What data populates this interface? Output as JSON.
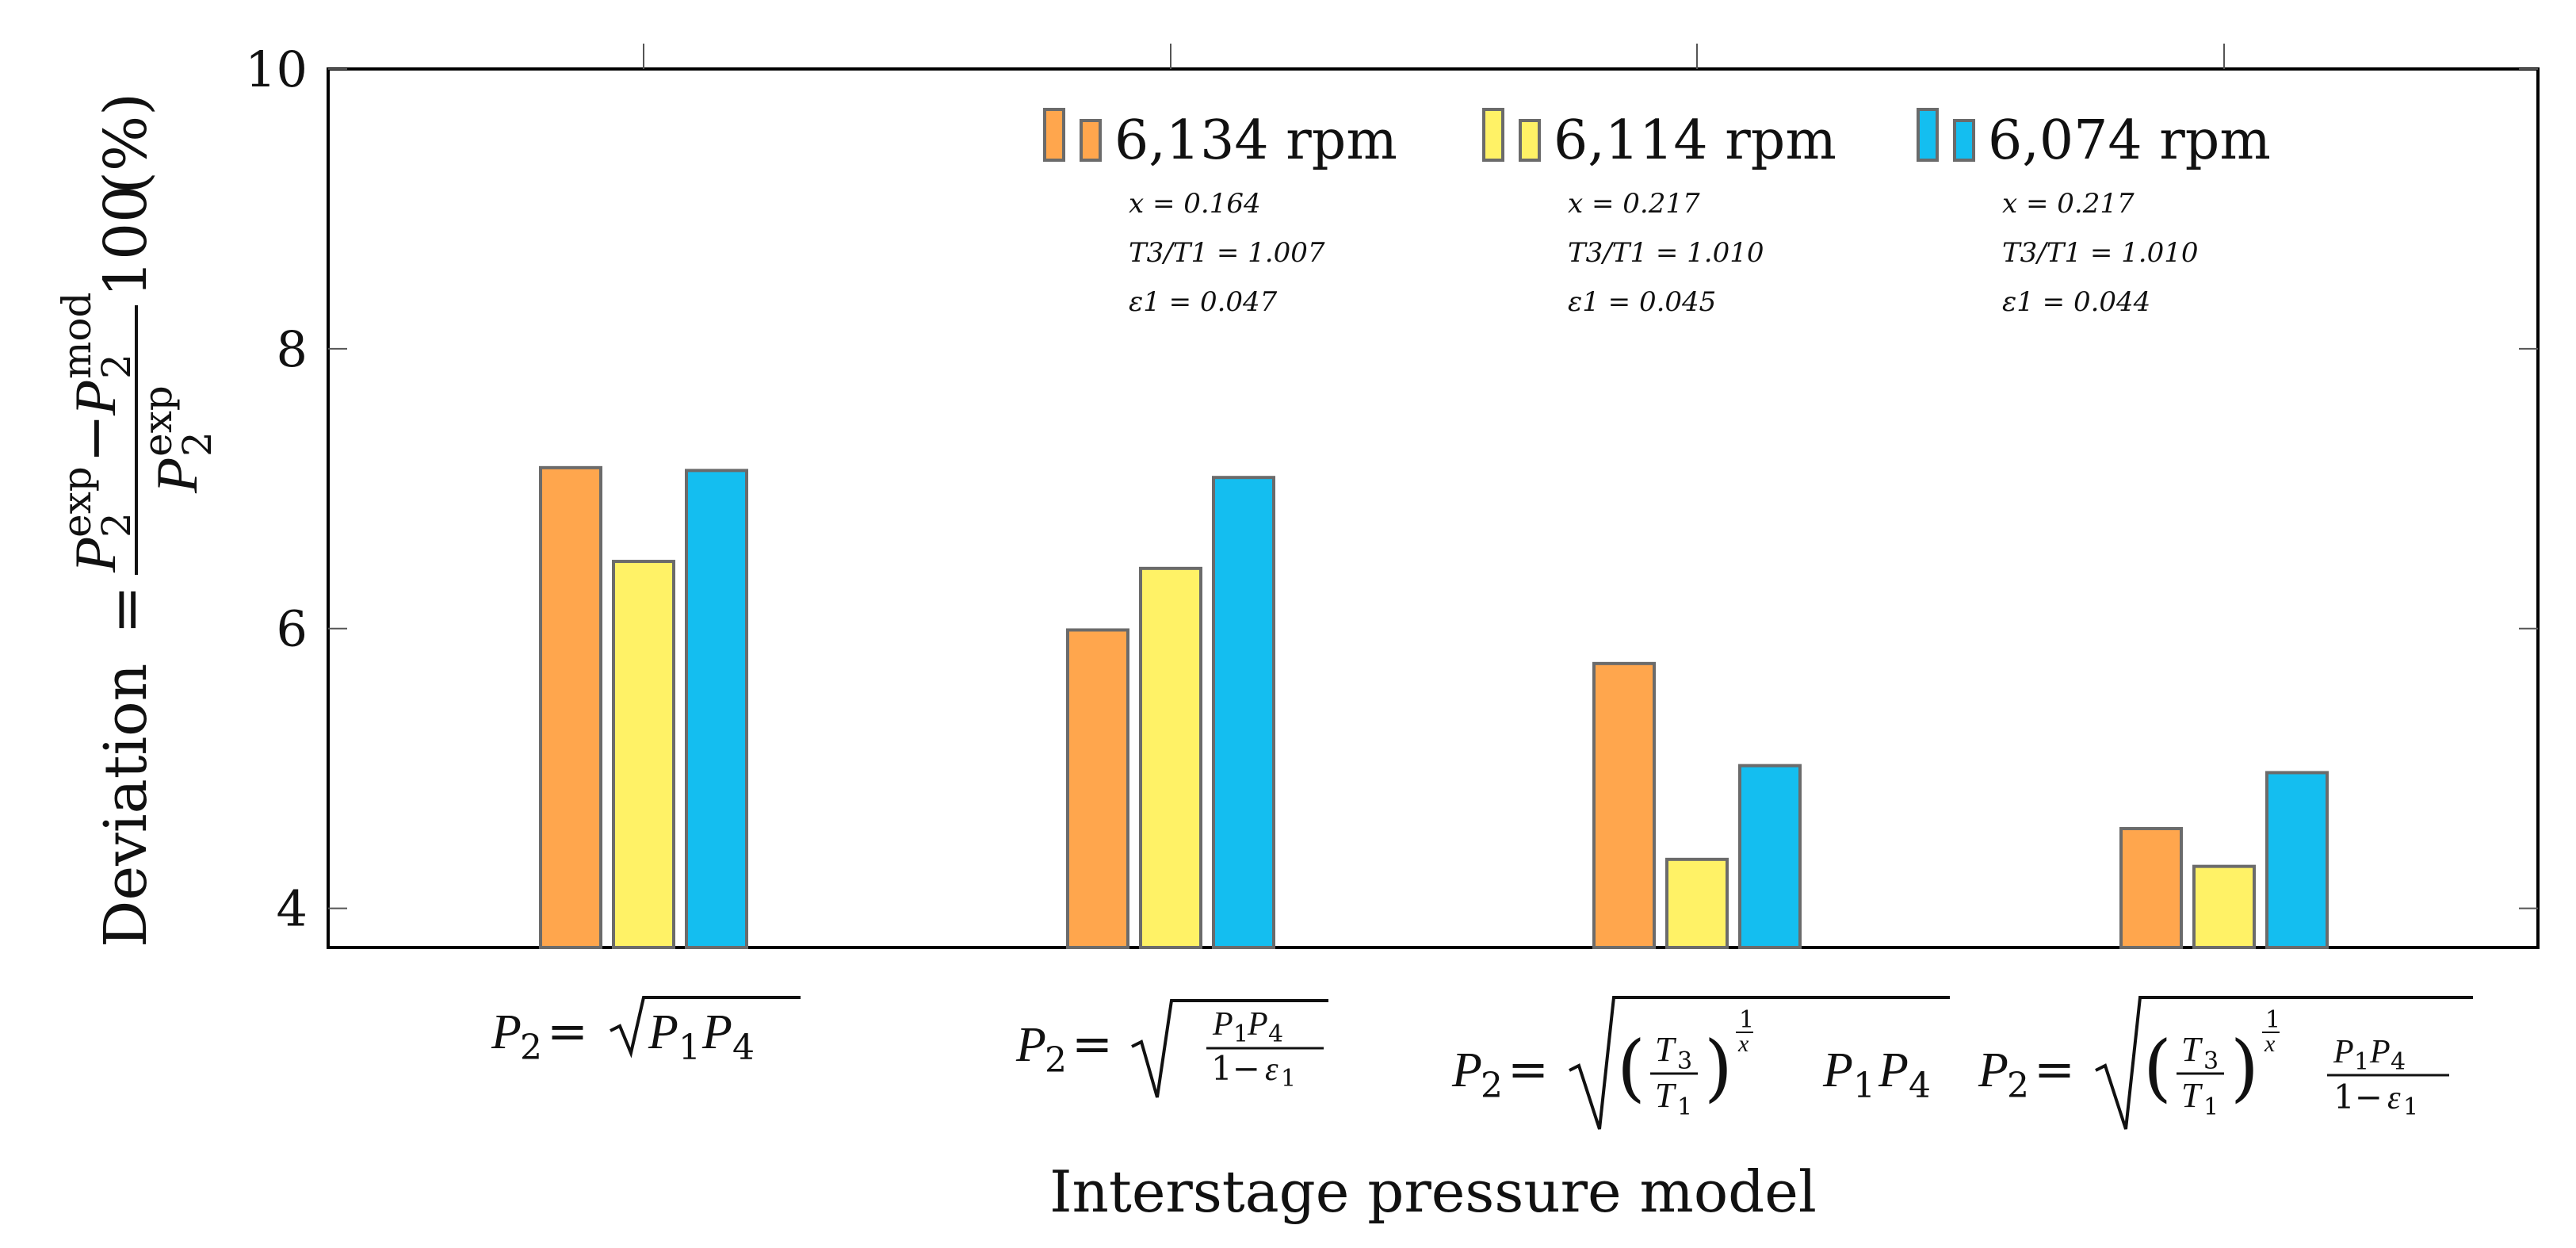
{
  "chart_data": {
    "type": "bar",
    "title": "",
    "xlabel": "Interstage pressure model",
    "ylabel": {
      "lhs": "Deviation",
      "eq": "=",
      "num_a": "P",
      "num_a_sub": "2",
      "num_a_sup": "exp",
      "minus": "−",
      "num_b": "P",
      "num_b_sub": "2",
      "num_b_sup": "mod",
      "den": "P",
      "den_sub": "2",
      "den_sup": "exp",
      "factor": "100",
      "unit": "(%)"
    },
    "ylim": [
      3.72,
      10
    ],
    "yticks": [
      4,
      6,
      8,
      10
    ],
    "ytick_labels": [
      "4",
      "6",
      "8",
      "10"
    ],
    "categories": [
      "P2 = sqrt(P1 P4)",
      "P2 = sqrt(P1 P4 / (1 - ε1))",
      "P2 = sqrt((T3/T1)^(1/x) P1 P4)",
      "P2 = sqrt((T3/T1)^(1/x) P1 P4 / (1 - ε1))"
    ],
    "series": [
      {
        "name": "6,134 rpm",
        "color": "#FFA64D",
        "values": [
          7.15,
          5.99,
          5.75,
          4.57
        ],
        "params": [
          "x = 0.164",
          "T3/T1 = 1.007",
          "ε1 = 0.047"
        ]
      },
      {
        "name": "6,114 rpm",
        "color": "#FFF266",
        "values": [
          6.48,
          6.43,
          4.35,
          4.3
        ],
        "params": [
          "x = 0.217",
          "T3/T1 = 1.010",
          "ε1 = 0.045"
        ]
      },
      {
        "name": "6,074 rpm",
        "color": "#14BEF0",
        "values": [
          7.13,
          7.08,
          5.02,
          4.97
        ],
        "params": [
          "x = 0.217",
          "T3/T1 = 1.010",
          "ε1 = 0.044"
        ]
      }
    ],
    "legend_position": "top-right, inside",
    "grid": false
  },
  "sym": {
    "P": "P",
    "T": "T",
    "x": "x",
    "eps": "ε",
    "s1": "1",
    "s2": "2",
    "s3": "3",
    "s4": "4",
    "eq": "=",
    "one": "1",
    "one_minus": "1−",
    "lparen": "(",
    "rparen": ")"
  },
  "colors": {
    "axis": "#000000",
    "bar_stroke": "#6b6b6b",
    "text": "#111111"
  }
}
